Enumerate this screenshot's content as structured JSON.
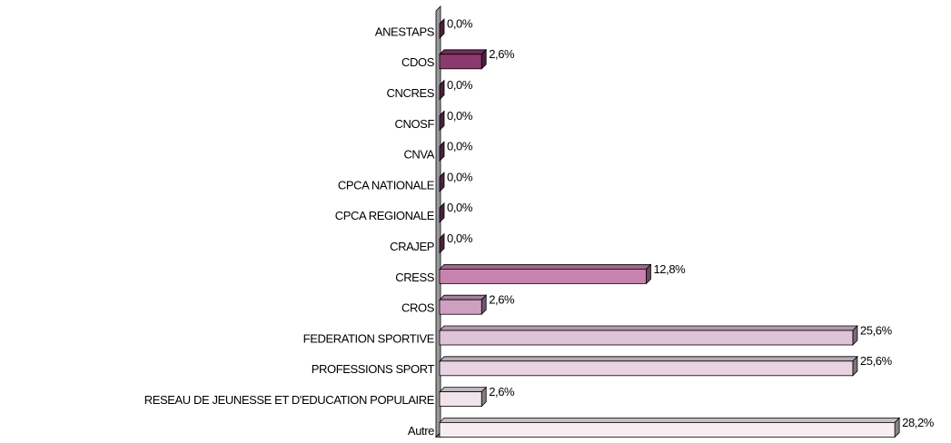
{
  "chart_data": {
    "type": "bar",
    "orientation": "horizontal",
    "categories": [
      "ANESTAPS",
      "CDOS",
      "CNCRES",
      "CNOSF",
      "CNVA",
      "CPCA NATIONALE",
      "CPCA REGIONALE",
      "CRAJEP",
      "CRESS",
      "CROS",
      "FEDERATION SPORTIVE",
      "PROFESSIONS SPORT",
      "RESEAU DE JEUNESSE ET D'EDUCATION POPULAIRE",
      "Autre"
    ],
    "values": [
      0,
      2.6,
      0,
      0,
      0,
      0,
      0,
      0,
      12.8,
      2.6,
      25.6,
      25.6,
      2.6,
      28.2
    ],
    "value_labels": [
      "0,0%",
      "2,6%",
      "0,0%",
      "0,0%",
      "0,0%",
      "0,0%",
      "0,0%",
      "0,0%",
      "12,8%",
      "2,6%",
      "25,6%",
      "25,6%",
      "2,6%",
      "28,2%"
    ],
    "colors": [
      "#8b3a6e",
      "#8b3a6e",
      "#8b3a6e",
      "#8b3a6e",
      "#8b3a6e",
      "#8b3a6e",
      "#8b3a6e",
      "#8b3a6e",
      "#c783ad",
      "#cf9fc1",
      "#dfc3d7",
      "#e8d3e2",
      "#f0e3ec",
      "#f6eef3"
    ],
    "xlim": [
      0,
      30
    ]
  }
}
